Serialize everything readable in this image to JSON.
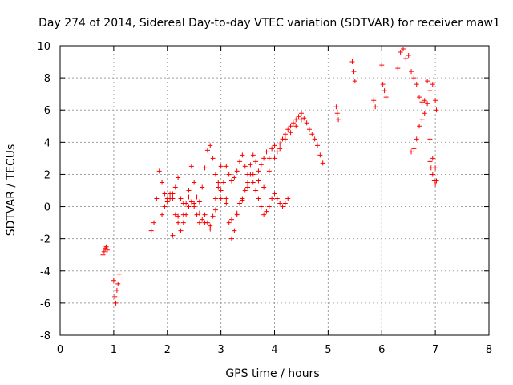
{
  "chart_data": {
    "type": "scatter",
    "title": "Day 274 of 2014, Sidereal Day-to-day VTEC variation (SDTVAR) for receiver maw1",
    "xlabel": "GPS time / hours",
    "ylabel": "SDTVAR / TECUs",
    "xlim": [
      0,
      8
    ],
    "ylim": [
      -8,
      10
    ],
    "xticks": [
      "0",
      "1",
      "2",
      "3",
      "4",
      "5",
      "6",
      "7",
      "8"
    ],
    "yticks": [
      "-8",
      "-6",
      "-4",
      "-2",
      "0",
      "2",
      "4",
      "6",
      "8",
      "10"
    ],
    "grid": true,
    "marker": "+",
    "color": "#ff0000",
    "series": [
      {
        "name": "SDTVAR",
        "x": [
          0.8,
          0.82,
          0.84,
          0.86,
          0.88,
          1.0,
          1.02,
          1.04,
          1.06,
          1.08,
          1.1,
          1.7,
          1.75,
          1.8,
          1.85,
          1.9,
          1.95,
          2.0,
          2.05,
          2.1,
          2.15,
          2.2,
          2.25,
          2.3,
          2.35,
          2.4,
          2.45,
          2.5,
          2.55,
          2.6,
          2.65,
          2.7,
          2.75,
          2.8,
          2.85,
          2.9,
          2.95,
          3.0,
          3.05,
          3.1,
          3.15,
          3.2,
          3.25,
          3.3,
          3.35,
          3.4,
          3.45,
          3.5,
          3.55,
          3.6,
          3.65,
          3.7,
          3.75,
          3.8,
          3.85,
          3.9,
          3.95,
          4.0,
          4.05,
          4.1,
          4.15,
          4.2,
          4.25,
          4.3,
          4.35,
          4.4,
          4.45,
          4.5,
          4.55,
          4.6,
          4.65,
          4.7,
          4.75,
          4.8,
          4.85,
          4.9,
          1.9,
          1.95,
          2.0,
          2.05,
          2.1,
          2.15,
          2.2,
          2.25,
          2.3,
          2.35,
          2.4,
          2.45,
          2.5,
          2.55,
          2.6,
          2.65,
          2.7,
          2.75,
          2.8,
          2.85,
          2.9,
          2.95,
          3.0,
          3.05,
          3.1,
          3.15,
          3.2,
          3.25,
          3.3,
          3.35,
          3.4,
          3.45,
          3.5,
          3.55,
          3.6,
          3.65,
          3.7,
          3.75,
          3.8,
          3.85,
          3.9,
          3.95,
          4.0,
          4.05,
          4.1,
          4.15,
          4.2,
          4.25,
          2.1,
          2.2,
          2.3,
          2.4,
          2.5,
          2.6,
          2.7,
          2.8,
          2.9,
          3.0,
          3.1,
          3.2,
          3.3,
          3.4,
          3.5,
          3.6,
          3.7,
          3.8,
          3.9,
          4.0,
          4.1,
          4.2,
          4.3,
          4.4,
          4.5,
          5.15,
          5.17,
          5.19,
          5.45,
          5.48,
          5.5,
          5.85,
          5.88,
          6.0,
          6.02,
          6.05,
          6.08,
          6.3,
          6.35,
          6.4,
          6.45,
          6.5,
          6.55,
          6.6,
          6.65,
          6.7,
          6.75,
          6.8,
          6.85,
          6.9,
          6.95,
          7.0,
          7.02,
          6.55,
          6.6,
          6.65,
          6.7,
          6.75,
          6.8,
          6.85,
          6.9,
          6.95,
          7.0,
          7.02,
          6.9,
          6.92,
          6.95,
          6.98,
          7.0
        ],
        "y": [
          -3.0,
          -2.8,
          -2.6,
          -2.5,
          -2.7,
          -4.6,
          -5.6,
          -6.0,
          -5.2,
          -4.8,
          -4.2,
          -1.5,
          -1.0,
          0.5,
          2.2,
          1.5,
          0.8,
          0.3,
          0.5,
          0.8,
          1.2,
          1.8,
          0.5,
          -0.5,
          0.2,
          1.0,
          2.5,
          1.5,
          0.6,
          0.3,
          1.2,
          2.4,
          3.5,
          3.8,
          3.0,
          2.0,
          1.2,
          0.5,
          1.5,
          2.5,
          2.0,
          1.6,
          1.8,
          2.2,
          2.8,
          3.2,
          2.5,
          2.0,
          2.6,
          3.2,
          2.8,
          2.2,
          2.6,
          3.0,
          3.4,
          3.0,
          3.6,
          3.8,
          3.4,
          3.9,
          4.2,
          4.5,
          4.8,
          5.0,
          5.2,
          5.4,
          5.6,
          5.8,
          5.5,
          5.2,
          4.8,
          4.5,
          4.2,
          3.8,
          3.2,
          2.7,
          -0.5,
          0.0,
          0.5,
          0.8,
          0.5,
          -0.5,
          -1.0,
          -1.5,
          -1.0,
          -0.5,
          0.0,
          0.3,
          0.0,
          -0.5,
          -1.0,
          -0.8,
          -0.5,
          -1.0,
          -1.2,
          -0.6,
          0.5,
          1.5,
          2.5,
          1.5,
          0.5,
          -1.0,
          -2.0,
          -1.5,
          -0.5,
          0.2,
          0.5,
          1.0,
          1.5,
          2.0,
          1.5,
          1.0,
          0.5,
          0.0,
          -0.5,
          -0.3,
          0.0,
          0.5,
          0.8,
          0.5,
          0.2,
          0.0,
          0.2,
          0.5,
          -1.8,
          -0.6,
          0.2,
          0.6,
          0.2,
          -0.4,
          -1.0,
          -1.4,
          -0.2,
          1.0,
          0.2,
          -0.8,
          -0.4,
          0.4,
          1.2,
          2.0,
          1.6,
          1.2,
          2.2,
          3.0,
          3.6,
          4.2,
          4.6,
          5.0,
          5.4,
          6.2,
          5.8,
          5.4,
          9.0,
          8.4,
          7.8,
          6.6,
          6.2,
          8.8,
          7.6,
          7.2,
          6.8,
          8.6,
          9.6,
          9.8,
          9.2,
          9.4,
          8.4,
          8.0,
          7.6,
          6.8,
          6.5,
          6.6,
          7.8,
          7.2,
          7.6,
          6.6,
          6.0,
          3.4,
          3.6,
          4.2,
          5.0,
          5.4,
          5.8,
          6.4,
          4.2,
          3.0,
          2.4,
          1.6,
          2.8,
          2.4,
          2.0,
          1.6,
          1.4
        ]
      }
    ]
  }
}
